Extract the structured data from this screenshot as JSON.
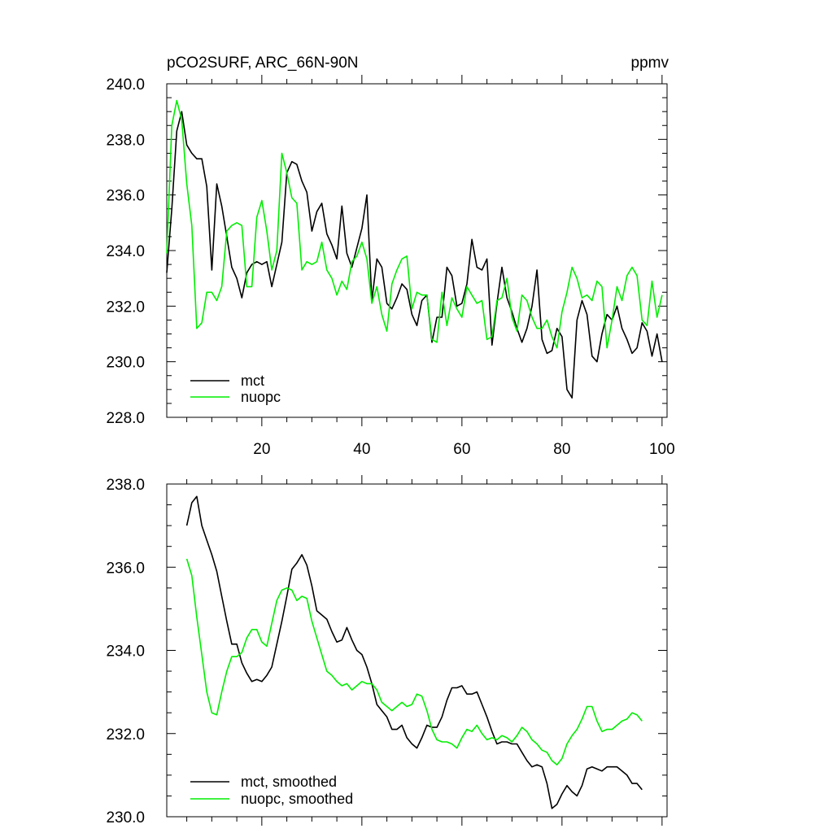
{
  "chart_data": [
    {
      "type": "line",
      "title_left": "pCO2SURF, ARC_66N-90N",
      "title_right": "ppmv",
      "xlim": [
        1,
        101
      ],
      "ylim": [
        228,
        240
      ],
      "x_ticks": [
        20,
        40,
        60,
        80,
        100
      ],
      "x_tick_labels": [
        "20",
        "40",
        "60",
        "80",
        "100"
      ],
      "y_ticks": [
        228,
        230,
        232,
        234,
        236,
        238,
        240
      ],
      "y_tick_labels": [
        "228.0",
        "230.0",
        "232.0",
        "234.0",
        "236.0",
        "238.0",
        "240.0"
      ],
      "legend": {
        "placement": "bottom-left"
      },
      "series": [
        {
          "name": "mct",
          "color": "#000000",
          "x_start": 1,
          "values": [
            233.2,
            235.5,
            238.3,
            239.0,
            237.8,
            237.5,
            237.3,
            237.3,
            236.3,
            233.3,
            236.4,
            235.6,
            234.5,
            233.4,
            233.0,
            232.3,
            233.2,
            233.5,
            233.6,
            233.5,
            233.6,
            232.7,
            233.5,
            234.3,
            236.8,
            237.2,
            237.1,
            236.5,
            236.1,
            234.7,
            235.4,
            235.7,
            234.6,
            234.2,
            233.7,
            235.6,
            233.9,
            233.4,
            234.1,
            234.8,
            236.0,
            232.2,
            233.7,
            233.4,
            232.1,
            231.9,
            232.3,
            232.8,
            232.6,
            231.7,
            231.3,
            232.2,
            232.4,
            230.7,
            231.6,
            231.6,
            233.4,
            233.1,
            232.0,
            232.1,
            232.8,
            234.4,
            233.4,
            233.3,
            233.7,
            230.6,
            232.1,
            233.4,
            232.3,
            231.8,
            231.2,
            230.7,
            231.2,
            232.0,
            233.3,
            230.8,
            230.3,
            230.4,
            231.2,
            230.9,
            229.0,
            228.7,
            231.5,
            232.2,
            231.7,
            230.2,
            230.0,
            231.0,
            231.7,
            231.5,
            232.0,
            231.2,
            230.8,
            230.3,
            230.5,
            231.4,
            231.1,
            230.2,
            231.0,
            230.0
          ]
        },
        {
          "name": "nuopc",
          "color": "#00ee00",
          "x_start": 1,
          "values": [
            233.9,
            238.5,
            239.4,
            238.7,
            236.4,
            234.9,
            231.2,
            231.4,
            232.5,
            232.5,
            232.2,
            232.7,
            234.7,
            234.9,
            235.0,
            234.9,
            232.7,
            232.7,
            235.2,
            235.8,
            234.7,
            233.3,
            234.0,
            237.5,
            236.8,
            235.9,
            235.7,
            233.3,
            233.6,
            233.5,
            233.6,
            234.3,
            233.3,
            233.0,
            232.4,
            232.9,
            232.6,
            233.6,
            233.8,
            234.3,
            233.7,
            232.1,
            232.7,
            231.7,
            231.1,
            232.8,
            233.3,
            233.7,
            233.8,
            231.9,
            232.5,
            232.4,
            232.4,
            230.8,
            230.7,
            232.5,
            231.3,
            232.3,
            231.9,
            231.6,
            232.7,
            232.4,
            232.1,
            232.2,
            230.8,
            230.9,
            232.2,
            232.3,
            233.0,
            231.6,
            231.1,
            232.4,
            232.2,
            231.6,
            231.2,
            231.2,
            231.5,
            230.9,
            230.5,
            231.8,
            232.5,
            233.4,
            233.0,
            232.3,
            232.4,
            232.2,
            232.9,
            232.7,
            230.5,
            231.5,
            232.7,
            232.2,
            233.1,
            233.4,
            233.1,
            231.5,
            231.3,
            232.9,
            231.6,
            232.4
          ]
        }
      ]
    },
    {
      "type": "line",
      "xlim": [
        1,
        101
      ],
      "ylim": [
        230,
        238
      ],
      "x_ticks": [
        20,
        40,
        60,
        80,
        100
      ],
      "y_ticks": [
        230,
        232,
        234,
        236,
        238
      ],
      "y_tick_labels": [
        "230.0",
        "232.0",
        "234.0",
        "236.0",
        "238.0"
      ],
      "legend": {
        "placement": "bottom-left"
      },
      "series": [
        {
          "name": "mct, smoothed",
          "color": "#000000",
          "x_start": 5,
          "values": [
            237.0,
            237.55,
            237.7,
            237.0,
            236.65,
            236.3,
            235.9,
            235.3,
            234.7,
            234.15,
            234.15,
            233.7,
            233.45,
            233.25,
            233.3,
            233.25,
            233.4,
            233.6,
            234.15,
            234.7,
            235.3,
            235.95,
            236.1,
            236.3,
            236.05,
            235.55,
            234.95,
            234.85,
            234.75,
            234.45,
            234.2,
            234.25,
            234.55,
            234.25,
            234.0,
            233.9,
            233.6,
            233.2,
            232.7,
            232.55,
            232.4,
            232.1,
            232.1,
            232.2,
            231.9,
            231.75,
            231.65,
            231.9,
            232.2,
            232.15,
            232.15,
            232.4,
            232.8,
            233.1,
            233.1,
            233.15,
            232.95,
            232.95,
            233.0,
            232.7,
            232.4,
            232.05,
            231.75,
            231.8,
            231.8,
            231.75,
            231.75,
            231.55,
            231.35,
            231.2,
            231.25,
            231.2,
            230.8,
            230.2,
            230.3,
            230.55,
            230.75,
            230.6,
            230.5,
            230.75,
            231.15,
            231.2,
            231.15,
            231.1,
            231.2,
            231.2,
            231.2,
            231.1,
            231.0,
            230.8,
            230.8,
            230.65
          ]
        },
        {
          "name": "nuopc, smoothed",
          "color": "#00ee00",
          "x_start": 5,
          "values": [
            236.2,
            235.8,
            234.8,
            233.9,
            233.0,
            232.5,
            232.45,
            233.0,
            233.5,
            233.85,
            233.85,
            233.95,
            234.3,
            234.5,
            234.5,
            234.2,
            234.1,
            234.65,
            235.2,
            235.45,
            235.5,
            235.45,
            235.2,
            235.3,
            235.25,
            234.7,
            234.3,
            233.9,
            233.5,
            233.4,
            233.25,
            233.15,
            233.2,
            233.05,
            233.15,
            233.25,
            233.2,
            233.2,
            233.05,
            232.75,
            232.65,
            232.55,
            232.65,
            232.75,
            232.65,
            232.7,
            232.95,
            232.9,
            232.55,
            232.1,
            231.85,
            231.8,
            231.8,
            231.75,
            231.65,
            231.9,
            232.1,
            232.05,
            232.2,
            232.0,
            231.85,
            231.9,
            231.85,
            231.95,
            231.9,
            231.8,
            231.95,
            232.15,
            232.05,
            231.85,
            231.75,
            231.6,
            231.55,
            231.35,
            231.25,
            231.4,
            231.75,
            231.95,
            232.1,
            232.35,
            232.65,
            232.65,
            232.3,
            232.05,
            232.1,
            232.1,
            232.2,
            232.3,
            232.35,
            232.5,
            232.45,
            232.3
          ]
        }
      ]
    }
  ]
}
